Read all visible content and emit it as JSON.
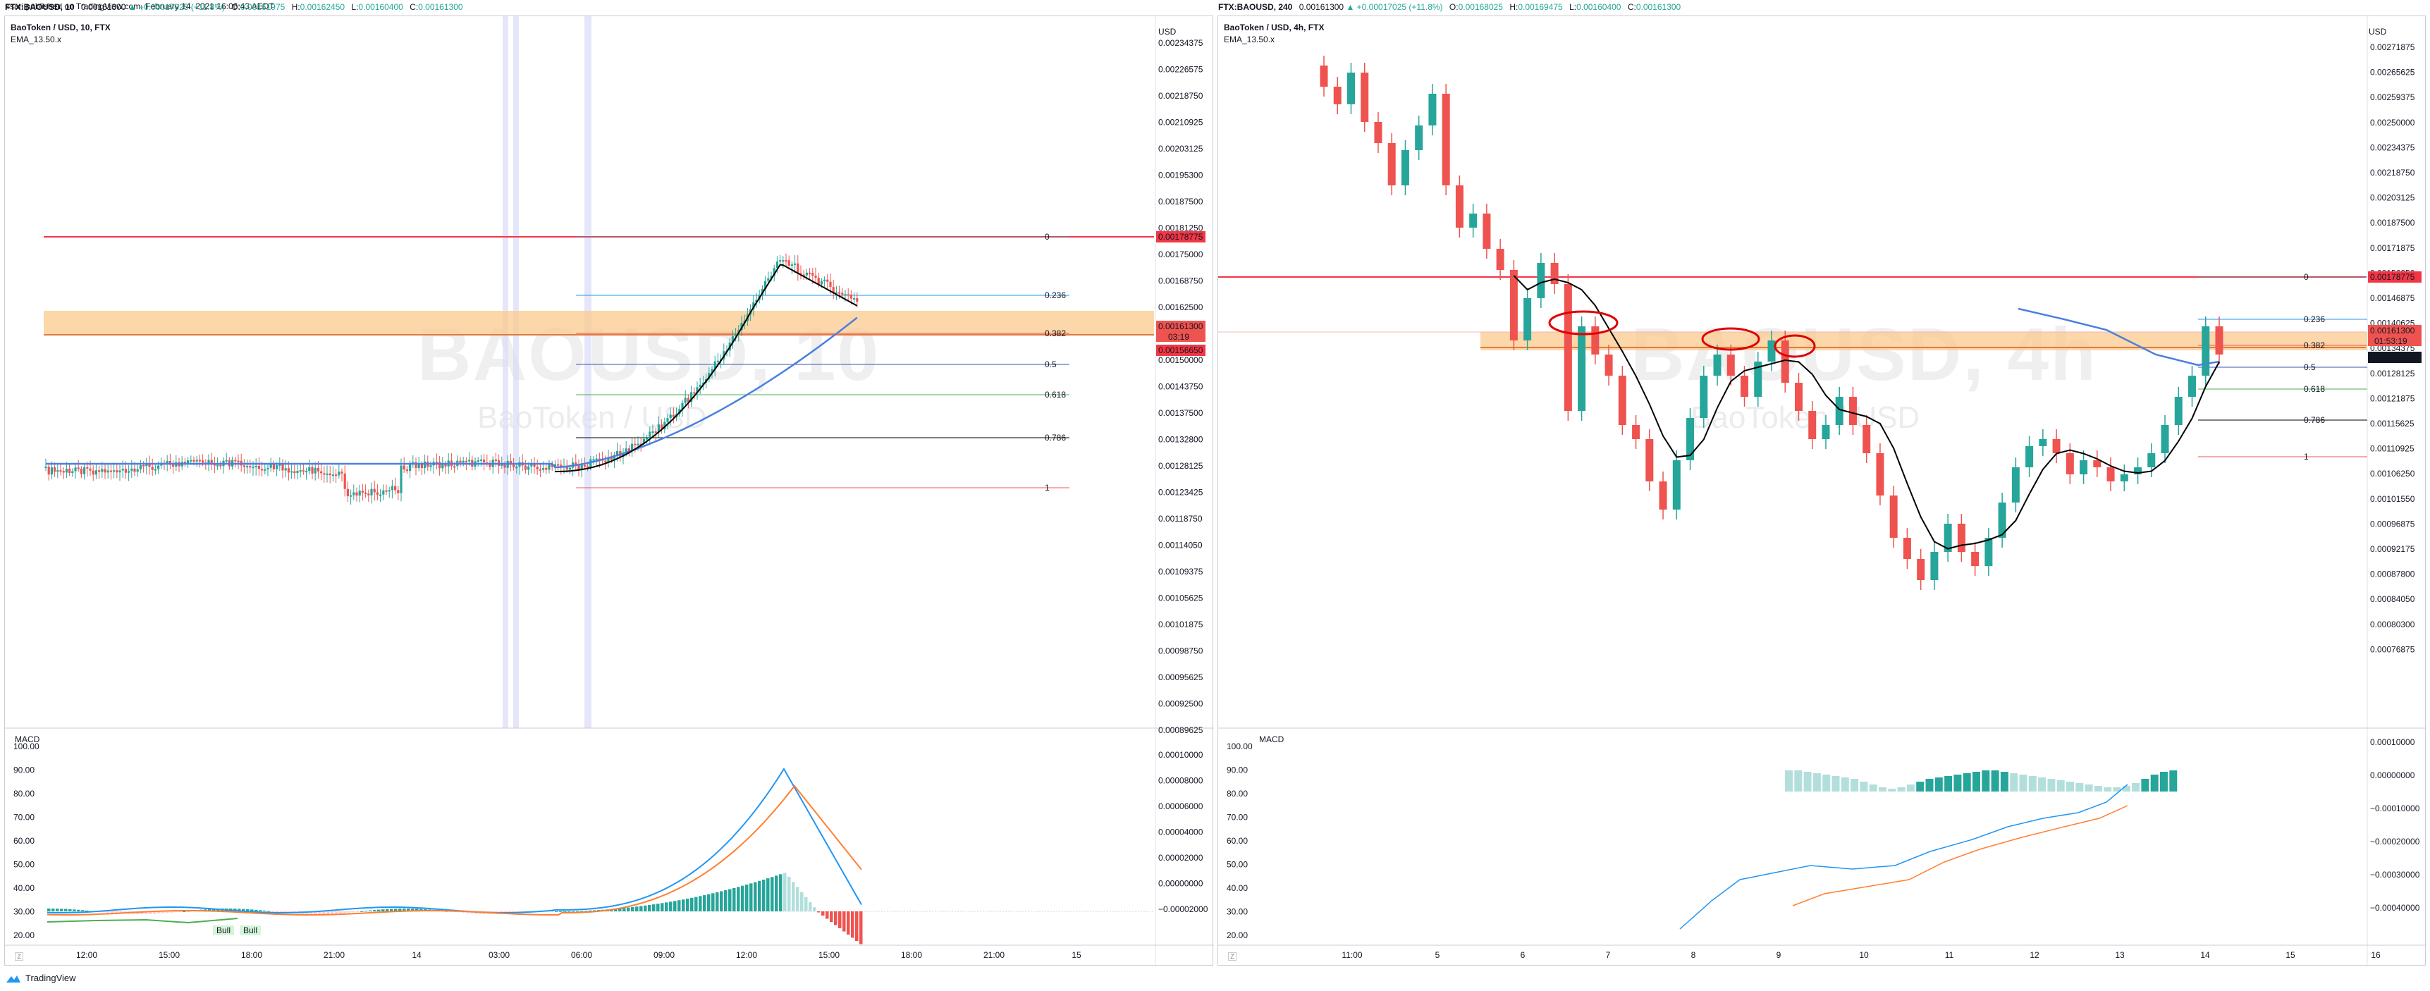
{
  "header": {
    "published": "ssari published on TradingView.com, February 14, 2021 16:06:43 AEDT"
  },
  "left": {
    "symline": {
      "symbol": "FTX:BAOUSD, 10",
      "price": "0.00161300",
      "change": "▲ +0.00017025 (+11.8%)",
      "o_label": "O:",
      "o": "0.00161975",
      "h_label": "H:",
      "h": "0.00162450",
      "l_label": "L:",
      "l": "0.00160400",
      "c_label": "C:",
      "c": "0.00161300"
    },
    "legend_title": "BaoToken / USD, 10, FTX",
    "legend_ema": "EMA_13.50.x",
    "watermark_big": "BAOUSD, 10",
    "watermark_small": "BaoToken / USD",
    "currency": "USD",
    "price_ticks": [
      "0.00234375",
      "0.00226575",
      "0.00218750",
      "0.00210925",
      "0.00203125",
      "0.00195300",
      "0.00187500",
      "0.00181250",
      "0.00175000",
      "0.00168750",
      "0.00162500",
      "0.00156250",
      "0.00150000",
      "0.00143750",
      "0.00137500",
      "0.00132800",
      "0.00128125",
      "0.00123425",
      "0.00118750",
      "0.00114050",
      "0.00109375",
      "0.00105625",
      "0.00101875",
      "0.00098750",
      "0.00095625",
      "0.00092500",
      "0.00089625"
    ],
    "price_badges": {
      "resistance": "0.00178775",
      "current": "0.00161300",
      "countdown": "03:19",
      "support": "0.00156650"
    },
    "fib_labels": [
      "0",
      "0.236",
      "0.382",
      "0.5",
      "0.618",
      "0.786",
      "1"
    ],
    "macd_title": "MACD",
    "macd_left_ticks": [
      "100.00",
      "90.00",
      "80.00",
      "70.00",
      "60.00",
      "50.00",
      "40.00",
      "30.00",
      "20.00"
    ],
    "macd_right_ticks": [
      "0.00010000",
      "0.00008000",
      "0.00006000",
      "0.00004000",
      "0.00002000",
      "0.00000000",
      "−0.00002000"
    ],
    "macd_badges": [
      "Bull",
      "Bull"
    ],
    "time_ticks": [
      "12:00",
      "15:00",
      "18:00",
      "21:00",
      "14",
      "03:00",
      "06:00",
      "09:00",
      "12:00",
      "15:00",
      "18:00",
      "21:00",
      "15"
    ]
  },
  "right": {
    "symline": {
      "symbol": "FTX:BAOUSD, 240",
      "price": "0.00161300",
      "change": "▲ +0.00017025 (+11.8%)",
      "o_label": "O:",
      "o": "0.00168025",
      "h_label": "H:",
      "h": "0.00169475",
      "l_label": "L:",
      "l": "0.00160400",
      "c_label": "C:",
      "c": "0.00161300"
    },
    "legend_title": "BaoToken / USD, 4h, FTX",
    "legend_ema": "EMA_13.50.x",
    "watermark_big": "BAOUSD, 4h",
    "watermark_small": "BaoToken / USD",
    "currency": "USD",
    "price_ticks": [
      "0.00271875",
      "0.00265625",
      "0.00259375",
      "0.00250000",
      "0.00234375",
      "0.00218750",
      "0.00203125",
      "0.00187500",
      "0.00171875",
      "0.00156250",
      "0.00146875",
      "0.00140625",
      "0.00134375",
      "0.00128125",
      "0.00121875",
      "0.00115625",
      "0.00110925",
      "0.00106250",
      "0.00101550",
      "0.00096875",
      "0.00092175",
      "0.00087800",
      "0.00084050",
      "0.00080300",
      "0.00076875"
    ],
    "price_badges": {
      "resistance": "0.00178775",
      "current": "0.00161300",
      "countdown": "01:53:19",
      "support": "0.00156650"
    },
    "fib_labels": [
      "0",
      "0.236",
      "0.382",
      "0.5",
      "0.618",
      "0.786",
      "1"
    ],
    "macd_title": "MACD",
    "macd_left_ticks": [
      "100.00",
      "90.00",
      "80.00",
      "70.00",
      "60.00",
      "50.00",
      "40.00",
      "30.00",
      "20.00"
    ],
    "macd_right_ticks": [
      "0.00010000",
      "0.00000000",
      "−0.00010000",
      "−0.00020000",
      "−0.00030000",
      "−0.00040000"
    ],
    "time_ticks": [
      "11:00",
      "5",
      "6",
      "7",
      "8",
      "9",
      "10",
      "11",
      "12",
      "13",
      "14",
      "15",
      "16"
    ]
  },
  "footer": {
    "brand": "TradingView"
  },
  "colors": {
    "up": "#26a69a",
    "down": "#ef5350",
    "resistance": "#f23645",
    "zone": "#f9ca8c",
    "ema_fast": "#000000",
    "ema_slow": "#4a7fe0",
    "macd_line": "#2196f3",
    "signal_line": "#ff7f32"
  }
}
